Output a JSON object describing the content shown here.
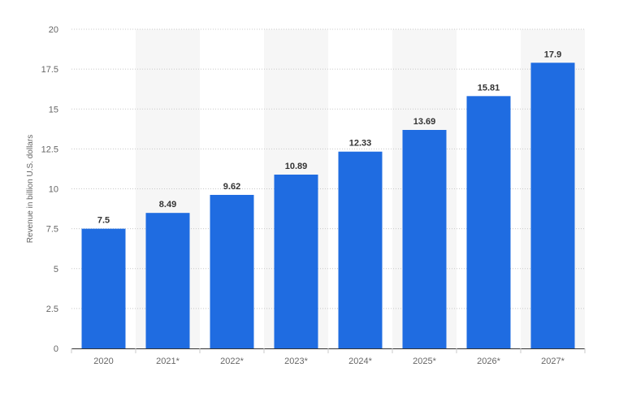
{
  "chart_data": {
    "type": "bar",
    "title": "",
    "xlabel": "",
    "ylabel": "Revenue in billion U.S. dollars",
    "categories": [
      "2020",
      "2021*",
      "2022*",
      "2023*",
      "2024*",
      "2025*",
      "2026*",
      "2027*"
    ],
    "values": [
      7.5,
      8.49,
      9.62,
      10.89,
      12.33,
      13.69,
      15.81,
      17.9
    ],
    "value_labels": [
      "7.5",
      "8.49",
      "9.62",
      "10.89",
      "12.33",
      "13.69",
      "15.81",
      "17.9"
    ],
    "ylim": [
      0,
      20
    ],
    "yticks": [
      0,
      2.5,
      5,
      7.5,
      10,
      12.5,
      15,
      17.5,
      20
    ],
    "ytick_labels": [
      "0",
      "2.5",
      "5",
      "7.5",
      "10",
      "12.5",
      "15",
      "17.5",
      "20"
    ],
    "grid": true,
    "legend": "none",
    "colors": {
      "bar": "#1f6ce1",
      "band": "#f6f6f6",
      "grid": "#c8c8c8",
      "axis": "#333333",
      "tick_text": "#666666",
      "value_text": "#333333"
    }
  }
}
